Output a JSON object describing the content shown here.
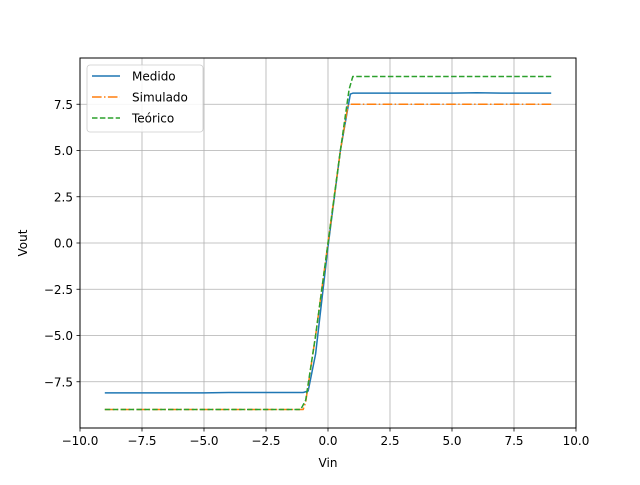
{
  "chart_data": {
    "type": "line",
    "title": "",
    "xlabel": "Vin",
    "ylabel": "Vout",
    "xlim": [
      -10,
      10
    ],
    "ylim": [
      -10,
      10
    ],
    "xticks": [
      -10.0,
      -7.5,
      -5.0,
      -2.5,
      0.0,
      2.5,
      5.0,
      7.5,
      10.0
    ],
    "xtick_labels": [
      "−10.0",
      "−7.5",
      "−5.0",
      "−2.5",
      "0.0",
      "2.5",
      "5.0",
      "7.5",
      "10.0"
    ],
    "yticks": [
      -7.5,
      -5.0,
      -2.5,
      0.0,
      2.5,
      5.0,
      7.5
    ],
    "ytick_labels": [
      "−7.5",
      "−5.0",
      "−2.5",
      "0.0",
      "2.5",
      "5.0",
      "7.5"
    ],
    "grid": true,
    "legend_position": "top-left",
    "series": [
      {
        "name": "Medido",
        "color": "#1f77b4",
        "style": "solid",
        "points": [
          [
            -9.0,
            -8.1
          ],
          [
            -5.0,
            -8.1
          ],
          [
            -4.0,
            -8.08
          ],
          [
            -1.0,
            -8.08
          ],
          [
            -0.8,
            -8.0
          ],
          [
            -0.5,
            -6.0
          ],
          [
            0.0,
            -0.2
          ],
          [
            0.5,
            5.0
          ],
          [
            0.9,
            8.05
          ],
          [
            1.0,
            8.1
          ],
          [
            5.0,
            8.1
          ],
          [
            6.0,
            8.12
          ],
          [
            7.0,
            8.1
          ],
          [
            9.0,
            8.1
          ]
        ]
      },
      {
        "name": "Simulado",
        "color": "#ff7f0e",
        "style": "dashdot",
        "points": [
          [
            -9.0,
            -9.0
          ],
          [
            -1.0,
            -9.0
          ],
          [
            -0.9,
            -8.6
          ],
          [
            -0.5,
            -5.0
          ],
          [
            0.0,
            0.0
          ],
          [
            0.5,
            5.0
          ],
          [
            0.8,
            7.4
          ],
          [
            0.9,
            7.5
          ],
          [
            9.0,
            7.5
          ]
        ]
      },
      {
        "name": "Teórico",
        "color": "#2ca02c",
        "style": "dashed",
        "points": [
          [
            -9.0,
            -9.0
          ],
          [
            -1.1,
            -9.0
          ],
          [
            -0.9,
            -8.5
          ],
          [
            -0.5,
            -5.0
          ],
          [
            0.0,
            0.0
          ],
          [
            0.5,
            5.0
          ],
          [
            0.85,
            8.3
          ],
          [
            1.0,
            9.0
          ],
          [
            9.0,
            9.0
          ]
        ]
      }
    ]
  }
}
